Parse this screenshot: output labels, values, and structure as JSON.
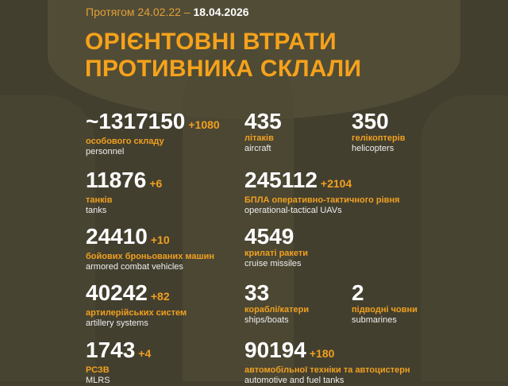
{
  "header": {
    "period_prefix": "Протягом 24.02.22 –",
    "period_end": "18.04.2026",
    "title_line1": "ОРІЄНТОВНІ ВТРАТИ",
    "title_line2": "ПРОТИВНИКА СКЛАЛИ"
  },
  "colors": {
    "accent": "#f6a21b",
    "background": "#433f2f",
    "text": "#ffffff"
  },
  "stats": [
    {
      "value": "~1317150",
      "delta": "+1080",
      "ua": "особового складу",
      "en": "personnel"
    },
    {
      "value": "435",
      "delta": "",
      "ua": "літаків",
      "en": "aircraft"
    },
    {
      "value": "350",
      "delta": "",
      "ua": "гелікоптерів",
      "en": "helicopters"
    },
    {
      "value": "11876",
      "delta": "+6",
      "ua": "танків",
      "en": "tanks"
    },
    {
      "value": "245112",
      "delta": "+2104",
      "ua": "БПЛА оперативно-тактичного рівня",
      "en": "operational-tactical UAVs"
    },
    {
      "value": "24410",
      "delta": "+10",
      "ua": "бойових броньованих машин",
      "en": "armored combat vehicles"
    },
    {
      "value": "4549",
      "delta": "",
      "ua": "крилаті ракети",
      "en": "cruise missiles"
    },
    {
      "value": "40242",
      "delta": "+82",
      "ua": "артилерійських систем",
      "en": "artillery systems"
    },
    {
      "value": "33",
      "delta": "",
      "ua": "кораблі/катери",
      "en": "ships/boats"
    },
    {
      "value": "2",
      "delta": "",
      "ua": "підводні човни",
      "en": "submarines"
    },
    {
      "value": "1743",
      "delta": "+4",
      "ua": "РСЗВ",
      "en": "MLRS"
    },
    {
      "value": "90194",
      "delta": "+180",
      "ua": "автомобільної техніки та автоцистерн",
      "en": "automotive and fuel tanks"
    }
  ]
}
